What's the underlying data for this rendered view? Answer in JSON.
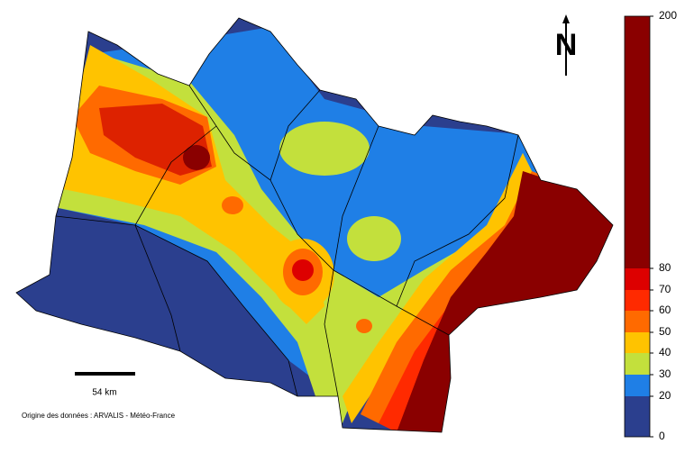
{
  "north": "N",
  "scale_bar": {
    "label": "54 km"
  },
  "source": "Origine des données : ARVALIS - Météo-France",
  "legend": {
    "ticks": [
      0,
      20,
      30,
      40,
      50,
      60,
      70,
      80,
      200
    ],
    "colors": [
      "#2b3f8e",
      "#1f7fe6",
      "#c3e03c",
      "#ffc300",
      "#ff6a00",
      "#ff2a00",
      "#dd0000",
      "#8a0000"
    ]
  }
}
